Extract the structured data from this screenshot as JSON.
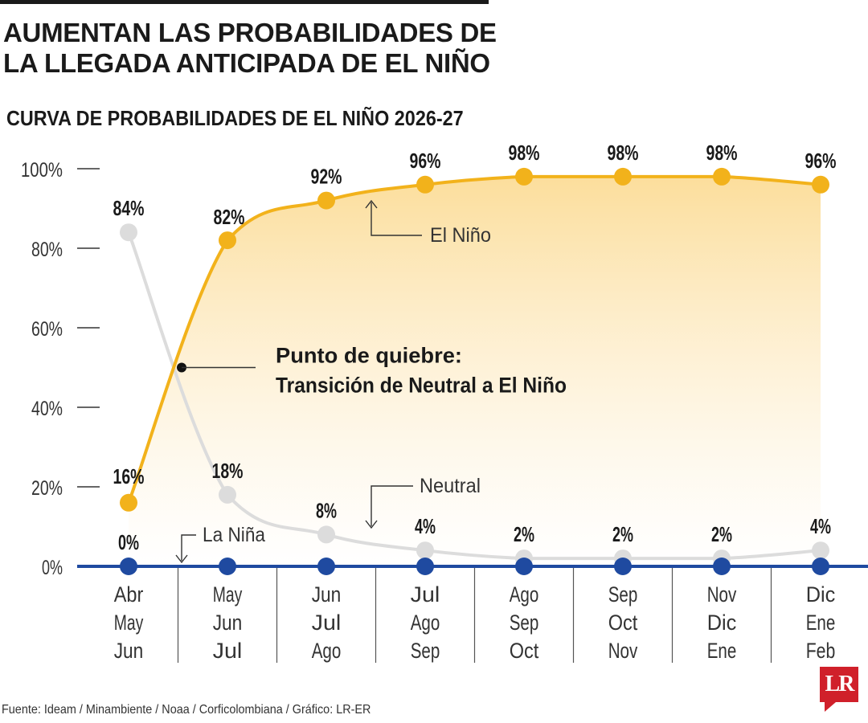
{
  "headline": "AUMENTAN LAS PROBABILIDADES DE LA LLEGADA ANTICIPADA DE EL NIÑO",
  "source": "Fuente: Ideam / Minambiente / Noaa / Corficolombiana / Gráfico: LR-ER",
  "logo": "LR",
  "chart_data": {
    "type": "line",
    "title": "CURVA DE PROBABILIDADES DE EL NIÑO 2026-27",
    "categories": [
      [
        "Abr",
        "May",
        "Jun"
      ],
      [
        "May",
        "Jun",
        "Jul"
      ],
      [
        "Jun",
        "Jul",
        "Ago"
      ],
      [
        "Jul",
        "Ago",
        "Sep"
      ],
      [
        "Ago",
        "Sep",
        "Oct"
      ],
      [
        "Sep",
        "Oct",
        "Nov"
      ],
      [
        "Nov",
        "Dic",
        "Ene"
      ],
      [
        "Dic",
        "Ene",
        "Feb"
      ]
    ],
    "yticks": [
      "100%",
      "80%",
      "60%",
      "40%",
      "20%",
      "0%"
    ],
    "ylim": [
      0,
      100
    ],
    "grid": false,
    "series": [
      {
        "name": "El Niño",
        "color": "#f2b21b",
        "fill": "gradient",
        "values": [
          16,
          82,
          92,
          96,
          98,
          98,
          98,
          96
        ],
        "labels": [
          "16%",
          "82%",
          "92%",
          "96%",
          "98%",
          "98%",
          "98%",
          "96%"
        ]
      },
      {
        "name": "Neutral",
        "color": "#dcdcdc",
        "values": [
          84,
          18,
          8,
          4,
          2,
          2,
          2,
          4
        ],
        "labels": [
          "84%",
          "18%",
          "8%",
          "4%",
          "2%",
          "2%",
          "2%",
          "4%"
        ]
      },
      {
        "name": "La Niña",
        "color": "#1f4aa0",
        "values": [
          0,
          0,
          0,
          0,
          0,
          0,
          0,
          0
        ],
        "labels": [
          "0%",
          "",
          "",
          "",
          "",
          "",
          "",
          ""
        ]
      }
    ],
    "annotations": {
      "crossover_title": "Punto de quiebre:",
      "crossover_text": "Transición de Neutral a El Niño",
      "crossover_value": 50
    }
  }
}
